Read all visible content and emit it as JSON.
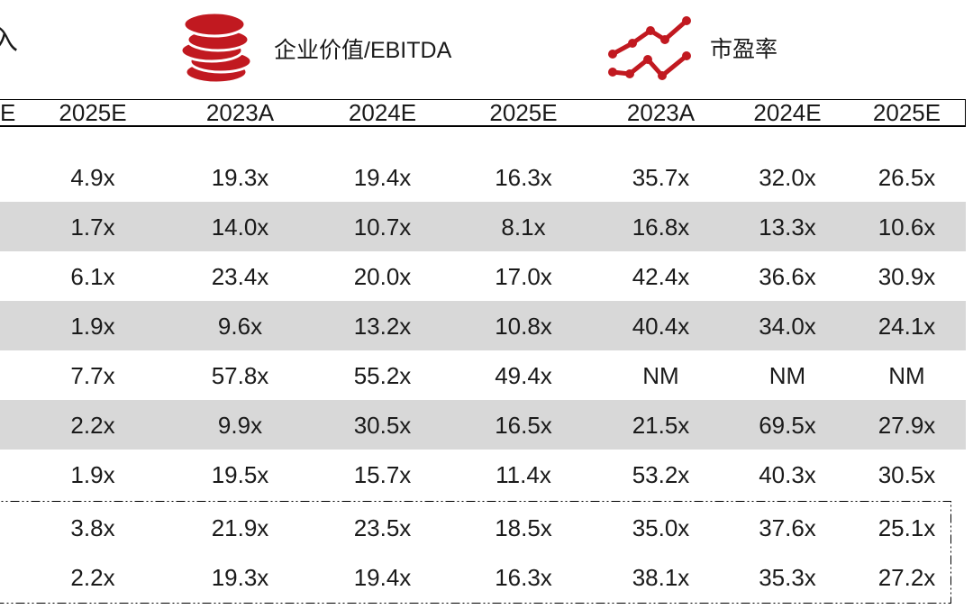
{
  "colors": {
    "accent_red": "#c11920",
    "row_stripe": "#d8d8d8",
    "border": "#000000",
    "text": "#1a1a1a"
  },
  "top": {
    "partial_left_text": "入"
  },
  "legend": [
    {
      "icon": "coin-stack-icon",
      "label": "企业价值/EBITDA"
    },
    {
      "icon": "line-chart-icon",
      "label": "市盈率"
    }
  ],
  "table": {
    "cut_header": "E",
    "columns": [
      "2025E",
      "2023A",
      "2024E",
      "2025E",
      "2023A",
      "2024E",
      "2025E"
    ],
    "rows": [
      {
        "shaded": false,
        "in_summary_box": false,
        "values": [
          "4.9x",
          "19.3x",
          "19.4x",
          "16.3x",
          "35.7x",
          "32.0x",
          "26.5x"
        ]
      },
      {
        "shaded": true,
        "in_summary_box": false,
        "values": [
          "1.7x",
          "14.0x",
          "10.7x",
          "8.1x",
          "16.8x",
          "13.3x",
          "10.6x"
        ]
      },
      {
        "shaded": false,
        "in_summary_box": false,
        "values": [
          "6.1x",
          "23.4x",
          "20.0x",
          "17.0x",
          "42.4x",
          "36.6x",
          "30.9x"
        ]
      },
      {
        "shaded": true,
        "in_summary_box": false,
        "values": [
          "1.9x",
          "9.6x",
          "13.2x",
          "10.8x",
          "40.4x",
          "34.0x",
          "24.1x"
        ]
      },
      {
        "shaded": false,
        "in_summary_box": false,
        "values": [
          "7.7x",
          "57.8x",
          "55.2x",
          "49.4x",
          "NM",
          "NM",
          "NM"
        ]
      },
      {
        "shaded": true,
        "in_summary_box": false,
        "values": [
          "2.2x",
          "9.9x",
          "30.5x",
          "16.5x",
          "21.5x",
          "69.5x",
          "27.9x"
        ]
      },
      {
        "shaded": false,
        "in_summary_box": false,
        "values": [
          "1.9x",
          "19.5x",
          "15.7x",
          "11.4x",
          "53.2x",
          "40.3x",
          "30.5x"
        ]
      },
      {
        "shaded": false,
        "in_summary_box": true,
        "values": [
          "3.8x",
          "21.9x",
          "23.5x",
          "18.5x",
          "35.0x",
          "37.6x",
          "25.1x"
        ]
      },
      {
        "shaded": false,
        "in_summary_box": true,
        "values": [
          "2.2x",
          "19.3x",
          "19.4x",
          "16.3x",
          "38.1x",
          "35.3x",
          "27.2x"
        ]
      }
    ]
  }
}
